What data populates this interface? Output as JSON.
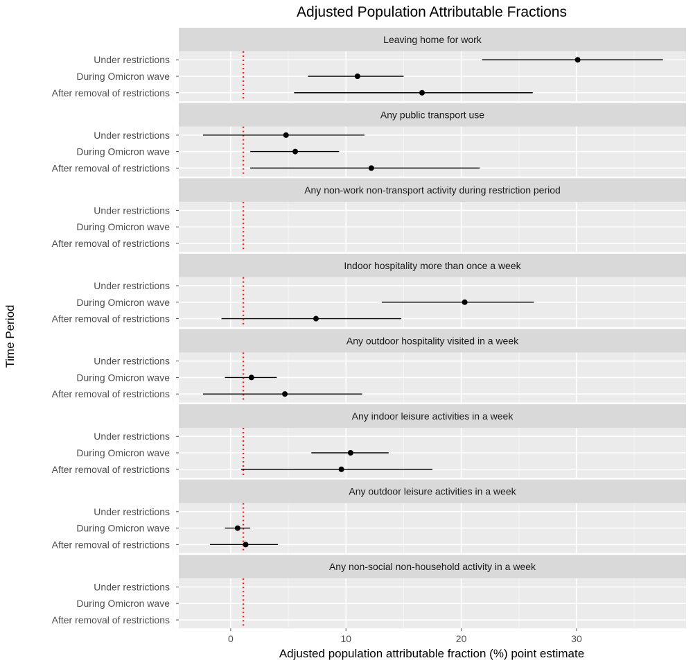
{
  "chart_data": {
    "type": "forest",
    "title": "Adjusted Population Attributable Fractions",
    "xlabel": "Adjusted population attributable fraction (%) point estimate",
    "ylabel": "Time Period",
    "xlim": [
      -4.5,
      39.5
    ],
    "x_ticks": [
      0,
      10,
      20,
      30
    ],
    "x_tick_labels": [
      "0",
      "10",
      "20",
      "30"
    ],
    "x_minor_ticks": [
      -5,
      5,
      15,
      25,
      35
    ],
    "reference_line": {
      "x": 1.1,
      "color": "#e41a1c",
      "style": "dotted"
    },
    "grid": true,
    "row_labels": [
      "Under restrictions",
      "During Omicron wave",
      "After removal of restrictions"
    ],
    "panels": [
      {
        "title": "Leaving home for work",
        "rows": [
          {
            "estimate": 30.1,
            "lower": 21.8,
            "upper": 37.5
          },
          {
            "estimate": 11.0,
            "lower": 6.7,
            "upper": 15.0
          },
          {
            "estimate": 16.6,
            "lower": 5.5,
            "upper": 26.2
          }
        ]
      },
      {
        "title": "Any public transport use",
        "rows": [
          {
            "estimate": 4.8,
            "lower": -2.4,
            "upper": 11.6
          },
          {
            "estimate": 5.6,
            "lower": 1.7,
            "upper": 9.4
          },
          {
            "estimate": 12.2,
            "lower": 1.7,
            "upper": 21.6
          }
        ]
      },
      {
        "title": "Any non-work non-transport activity during restriction period",
        "rows": [
          null,
          null,
          null
        ]
      },
      {
        "title": "Indoor hospitality more than once a week",
        "rows": [
          null,
          {
            "estimate": 20.3,
            "lower": 13.1,
            "upper": 26.3
          },
          {
            "estimate": 7.4,
            "lower": -0.8,
            "upper": 14.8
          }
        ]
      },
      {
        "title": "Any outdoor hospitality visited in a week",
        "rows": [
          null,
          {
            "estimate": 1.8,
            "lower": -0.5,
            "upper": 4.0
          },
          {
            "estimate": 4.7,
            "lower": -2.4,
            "upper": 11.4
          }
        ]
      },
      {
        "title": "Any indoor leisure activities in a week",
        "rows": [
          null,
          {
            "estimate": 10.4,
            "lower": 7.0,
            "upper": 13.7
          },
          {
            "estimate": 9.6,
            "lower": 0.9,
            "upper": 17.5
          }
        ]
      },
      {
        "title": "Any outdoor leisure activities in a week",
        "rows": [
          null,
          {
            "estimate": 0.6,
            "lower": -0.5,
            "upper": 1.7
          },
          {
            "estimate": 1.3,
            "lower": -1.8,
            "upper": 4.1
          }
        ]
      },
      {
        "title": "Any non-social non-household activity in a week",
        "rows": [
          null,
          null,
          null
        ]
      }
    ]
  }
}
